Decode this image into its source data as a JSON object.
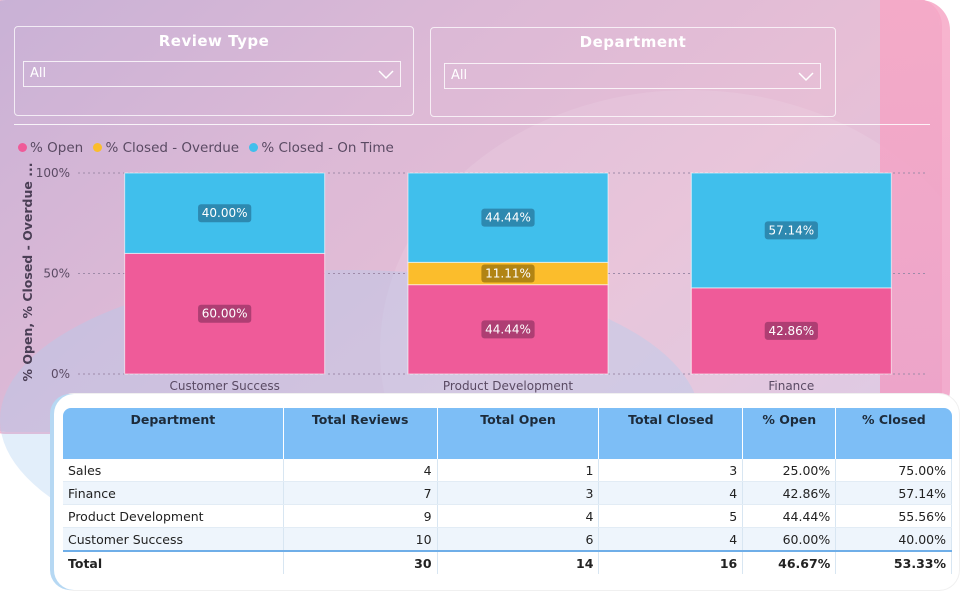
{
  "filters": {
    "review_type": {
      "title": "Review Type",
      "value": "All"
    },
    "department": {
      "title": "Department",
      "value": "All"
    }
  },
  "legend": [
    {
      "label": "% Open",
      "color": "#ef5b99"
    },
    {
      "label": "% Closed - Overdue",
      "color": "#fbbd2c"
    },
    {
      "label": "% Closed - On Time",
      "color": "#40bfec"
    }
  ],
  "chart_data": {
    "type": "bar",
    "stacked": "100%",
    "ylabel": "% Open, % Closed - Overdue ...",
    "yticks": [
      "100%",
      "50%",
      "0%"
    ],
    "ylim": [
      0,
      100
    ],
    "categories": [
      "Customer Success",
      "Product Development",
      "Finance"
    ],
    "series": [
      {
        "name": "% Open",
        "values": [
          60.0,
          44.44,
          42.86
        ],
        "labels": [
          "60.00%",
          "44.44%",
          "42.86%"
        ]
      },
      {
        "name": "% Closed - Overdue",
        "values": [
          0,
          11.11,
          0
        ],
        "labels": [
          "",
          "11.11%",
          ""
        ]
      },
      {
        "name": "% Closed - On Time",
        "values": [
          40.0,
          44.44,
          57.14
        ],
        "labels": [
          "40.00%",
          "44.44%",
          "57.14%"
        ]
      }
    ],
    "grid": true,
    "legend_position": "top-left"
  },
  "table": {
    "headers": [
      "Department",
      "Total Reviews",
      "Total Open",
      "Total Closed",
      "% Open",
      "% Closed"
    ],
    "rows": [
      [
        "Sales",
        "4",
        "1",
        "3",
        "25.00%",
        "75.00%"
      ],
      [
        "Finance",
        "7",
        "3",
        "4",
        "42.86%",
        "57.14%"
      ],
      [
        "Product Development",
        "9",
        "4",
        "5",
        "44.44%",
        "55.56%"
      ],
      [
        "Customer Success",
        "10",
        "6",
        "4",
        "60.00%",
        "40.00%"
      ]
    ],
    "total": [
      "Total",
      "30",
      "14",
      "16",
      "46.67%",
      "53.33%"
    ]
  }
}
